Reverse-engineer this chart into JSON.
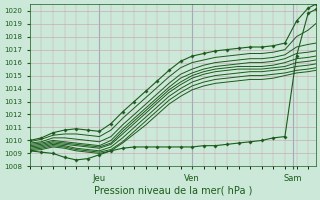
{
  "title": "",
  "xlabel": "Pression niveau de la mer( hPa )",
  "ylabel": "",
  "ylim": [
    1008,
    1020.5
  ],
  "xlim": [
    0,
    148
  ],
  "yticks": [
    1008,
    1009,
    1010,
    1011,
    1012,
    1013,
    1014,
    1015,
    1016,
    1017,
    1018,
    1019,
    1020
  ],
  "xtick_positions": [
    36,
    84,
    136
  ],
  "xtick_labels": [
    "Jeu",
    "Ven",
    "Sam"
  ],
  "bg_color": "#cce8d8",
  "grid_color": "#c8a0b0",
  "line_color": "#1a5c1a",
  "vline_color": "#6699bb",
  "lines": [
    [
      0,
      1009.2,
      6,
      1009.1,
      12,
      1009.0,
      18,
      1008.7,
      24,
      1008.5,
      30,
      1008.6,
      36,
      1008.9,
      42,
      1009.2,
      48,
      1009.4,
      54,
      1009.5,
      60,
      1009.5,
      66,
      1009.5,
      72,
      1009.5,
      78,
      1009.5,
      84,
      1009.5,
      90,
      1009.6,
      96,
      1009.6,
      102,
      1009.7,
      108,
      1009.8,
      114,
      1009.9,
      120,
      1010.0,
      126,
      1010.2,
      132,
      1010.3,
      138,
      1016.5,
      144,
      1019.8,
      148,
      1020.1
    ],
    [
      0,
      1009.2,
      6,
      1009.3,
      12,
      1009.5,
      18,
      1009.4,
      24,
      1009.2,
      30,
      1009.1,
      36,
      1009.0,
      42,
      1009.2,
      48,
      1009.8,
      54,
      1010.5,
      60,
      1011.2,
      66,
      1012.0,
      72,
      1012.8,
      78,
      1013.4,
      84,
      1013.9,
      90,
      1014.2,
      96,
      1014.4,
      102,
      1014.5,
      108,
      1014.6,
      114,
      1014.7,
      120,
      1014.7,
      126,
      1014.8,
      132,
      1015.0,
      138,
      1015.2,
      144,
      1015.3,
      148,
      1015.4
    ],
    [
      0,
      1009.3,
      6,
      1009.4,
      12,
      1009.6,
      18,
      1009.5,
      24,
      1009.3,
      30,
      1009.2,
      36,
      1009.1,
      42,
      1009.3,
      48,
      1009.9,
      54,
      1010.7,
      60,
      1011.5,
      66,
      1012.3,
      72,
      1013.1,
      78,
      1013.7,
      84,
      1014.2,
      90,
      1014.5,
      96,
      1014.7,
      102,
      1014.8,
      108,
      1014.9,
      114,
      1015.0,
      120,
      1015.0,
      126,
      1015.1,
      132,
      1015.2,
      138,
      1015.4,
      144,
      1015.5,
      148,
      1015.6
    ],
    [
      0,
      1009.4,
      6,
      1009.5,
      12,
      1009.7,
      18,
      1009.6,
      24,
      1009.4,
      30,
      1009.3,
      36,
      1009.2,
      42,
      1009.5,
      48,
      1010.2,
      54,
      1011.0,
      60,
      1011.8,
      66,
      1012.6,
      72,
      1013.4,
      78,
      1014.0,
      84,
      1014.5,
      90,
      1014.8,
      96,
      1015.0,
      102,
      1015.1,
      108,
      1015.2,
      114,
      1015.3,
      120,
      1015.3,
      126,
      1015.4,
      132,
      1015.5,
      138,
      1015.7,
      144,
      1015.8,
      148,
      1015.9
    ],
    [
      0,
      1009.5,
      6,
      1009.6,
      12,
      1009.8,
      18,
      1009.7,
      24,
      1009.6,
      30,
      1009.5,
      36,
      1009.4,
      42,
      1009.7,
      48,
      1010.5,
      54,
      1011.3,
      60,
      1012.1,
      66,
      1012.9,
      72,
      1013.7,
      78,
      1014.3,
      84,
      1014.8,
      90,
      1015.1,
      96,
      1015.3,
      102,
      1015.4,
      108,
      1015.5,
      114,
      1015.5,
      120,
      1015.5,
      126,
      1015.6,
      132,
      1015.7,
      138,
      1016.0,
      144,
      1016.1,
      148,
      1016.2
    ],
    [
      0,
      1009.6,
      6,
      1009.7,
      12,
      1009.9,
      18,
      1009.8,
      24,
      1009.7,
      30,
      1009.6,
      36,
      1009.5,
      42,
      1009.8,
      48,
      1010.7,
      54,
      1011.5,
      60,
      1012.3,
      66,
      1013.1,
      72,
      1013.9,
      78,
      1014.5,
      84,
      1015.0,
      90,
      1015.3,
      96,
      1015.5,
      102,
      1015.6,
      108,
      1015.7,
      114,
      1015.7,
      120,
      1015.7,
      126,
      1015.8,
      132,
      1016.0,
      138,
      1016.3,
      144,
      1016.4,
      148,
      1016.5
    ],
    [
      0,
      1009.7,
      6,
      1009.8,
      12,
      1010.0,
      18,
      1009.9,
      24,
      1009.8,
      30,
      1009.7,
      36,
      1009.6,
      42,
      1010.0,
      48,
      1010.9,
      54,
      1011.7,
      60,
      1012.5,
      66,
      1013.3,
      72,
      1014.1,
      78,
      1014.8,
      84,
      1015.2,
      90,
      1015.5,
      96,
      1015.7,
      102,
      1015.8,
      108,
      1015.9,
      114,
      1016.0,
      120,
      1016.0,
      126,
      1016.1,
      132,
      1016.3,
      138,
      1016.7,
      144,
      1016.8,
      148,
      1016.9
    ],
    [
      0,
      1009.8,
      6,
      1009.9,
      12,
      1010.2,
      18,
      1010.2,
      24,
      1010.1,
      30,
      1010.0,
      36,
      1009.9,
      42,
      1010.3,
      48,
      1011.2,
      54,
      1012.0,
      60,
      1012.8,
      66,
      1013.6,
      72,
      1014.4,
      78,
      1015.1,
      84,
      1015.5,
      90,
      1015.8,
      96,
      1016.0,
      102,
      1016.1,
      108,
      1016.2,
      114,
      1016.3,
      120,
      1016.3,
      126,
      1016.4,
      132,
      1016.6,
      138,
      1017.2,
      144,
      1017.4,
      148,
      1017.5
    ],
    [
      0,
      1009.9,
      6,
      1010.1,
      12,
      1010.4,
      18,
      1010.5,
      24,
      1010.5,
      30,
      1010.4,
      36,
      1010.3,
      42,
      1010.8,
      48,
      1011.7,
      54,
      1012.5,
      60,
      1013.3,
      66,
      1014.1,
      72,
      1014.9,
      78,
      1015.6,
      84,
      1016.0,
      90,
      1016.2,
      96,
      1016.4,
      102,
      1016.5,
      108,
      1016.6,
      114,
      1016.7,
      120,
      1016.7,
      126,
      1016.8,
      132,
      1017.0,
      138,
      1018.0,
      144,
      1018.5,
      148,
      1019.0
    ],
    [
      0,
      1010.0,
      6,
      1010.2,
      12,
      1010.6,
      18,
      1010.8,
      24,
      1010.9,
      30,
      1010.8,
      36,
      1010.7,
      42,
      1011.3,
      48,
      1012.2,
      54,
      1013.0,
      60,
      1013.8,
      66,
      1014.6,
      72,
      1015.4,
      78,
      1016.1,
      84,
      1016.5,
      90,
      1016.7,
      96,
      1016.9,
      102,
      1017.0,
      108,
      1017.1,
      114,
      1017.2,
      120,
      1017.2,
      126,
      1017.3,
      132,
      1017.5,
      138,
      1019.2,
      144,
      1020.2,
      148,
      1020.5
    ]
  ],
  "marker_lines": [
    0,
    9
  ],
  "figsize": [
    3.2,
    2.0
  ],
  "dpi": 100,
  "ytick_fontsize": 5,
  "xtick_fontsize": 6,
  "xlabel_fontsize": 7
}
